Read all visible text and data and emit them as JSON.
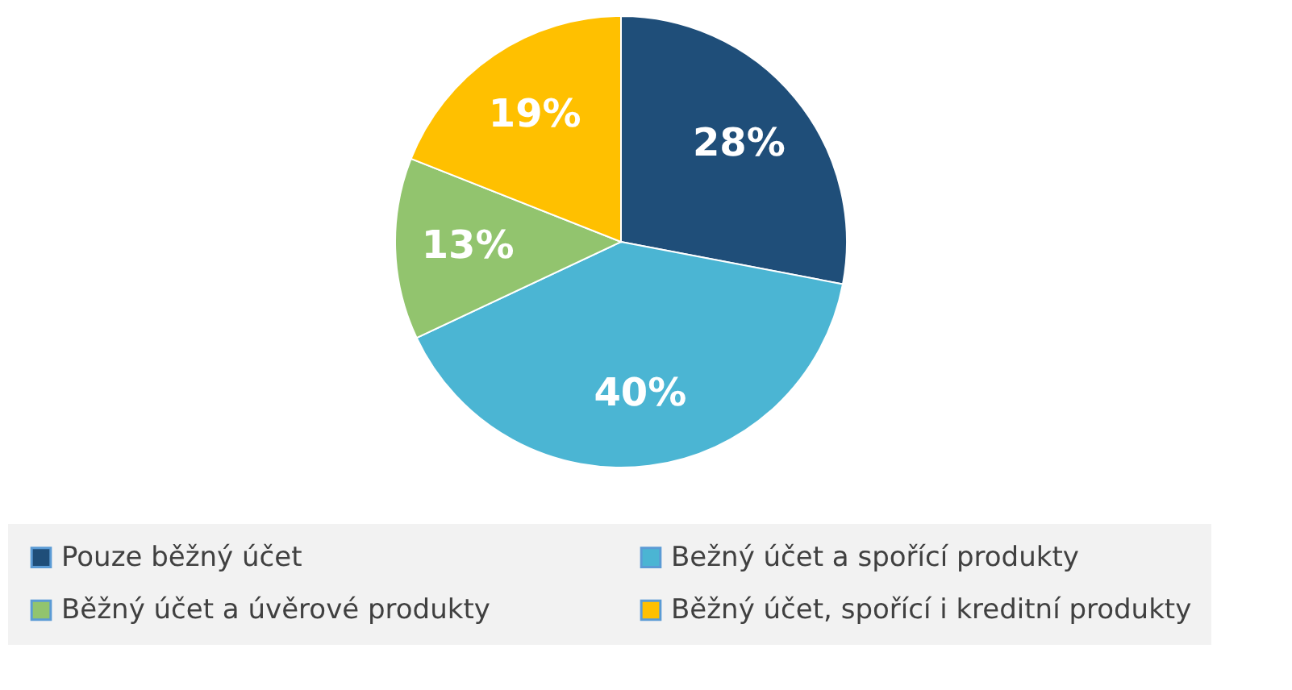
{
  "chart_data": {
    "type": "pie",
    "categories": [
      "Pouze běžný účet",
      "Bežný účet a spořící produkty",
      "Běžný účet a úvěrové produkty",
      "Běžný účet, spořící i kreditní produkty"
    ],
    "values": [
      28,
      40,
      13,
      19
    ],
    "colors": [
      "#1f4e79",
      "#4bb5d3",
      "#92c46e",
      "#ffc000"
    ],
    "value_labels": [
      "28%",
      "40%",
      "13%",
      "19%"
    ],
    "legend": "bottom"
  }
}
